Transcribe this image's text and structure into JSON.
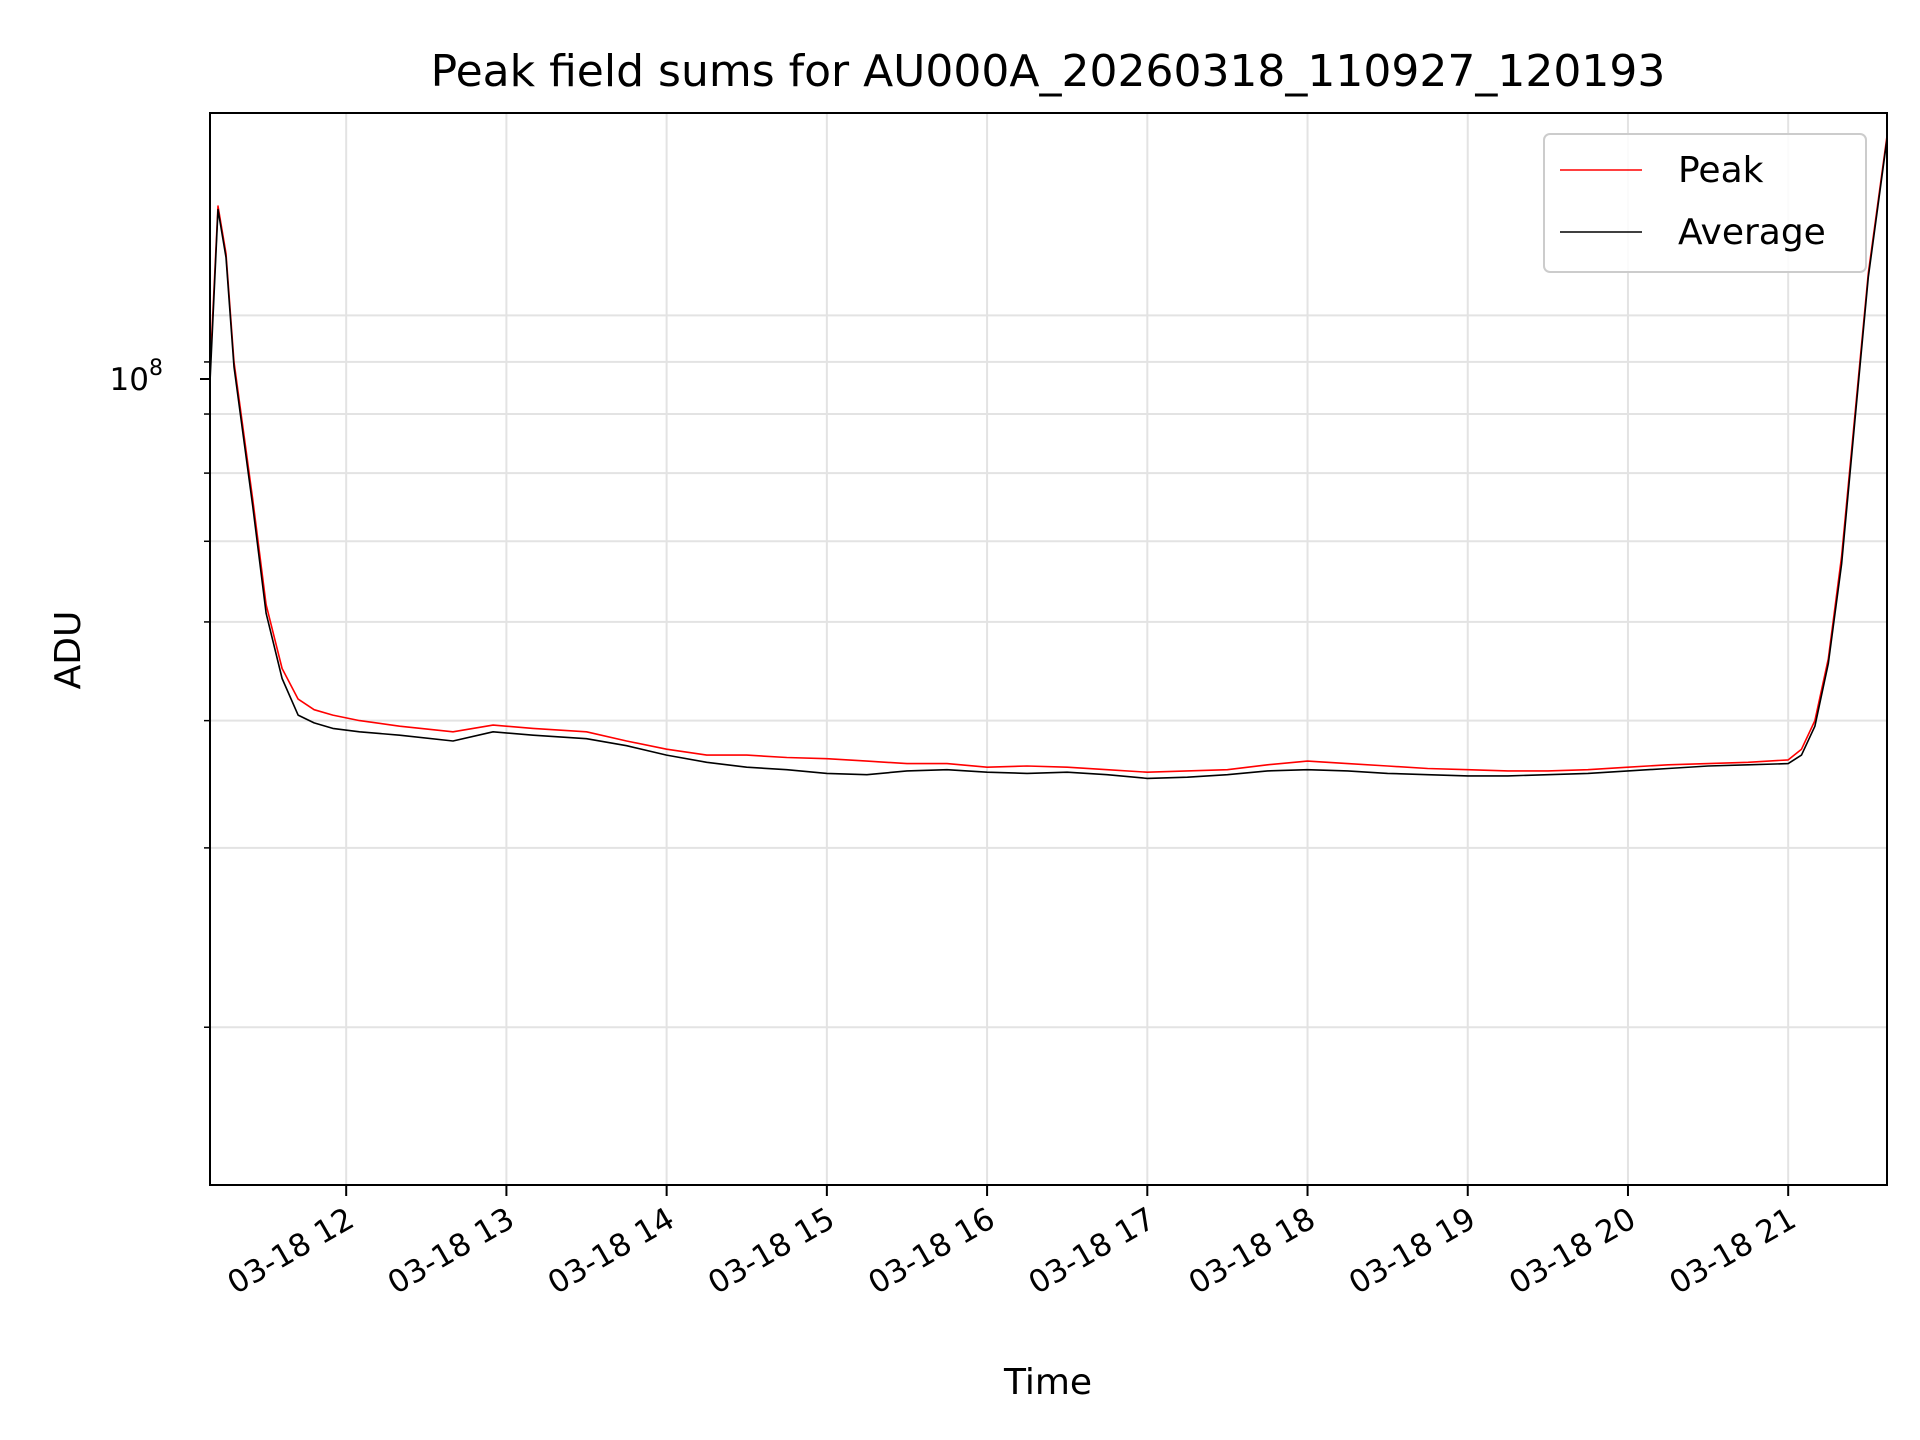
{
  "chart_data": {
    "type": "line",
    "title": "Peak field sums for AU000A_20260318_110927_120193",
    "xlabel": "Time",
    "ylabel": "ADU",
    "yscale": "log",
    "grid": true,
    "legend_placement": "top-right",
    "x_tick_labels": [
      "03-18 12",
      "03-18 13",
      "03-18 14",
      "03-18 15",
      "03-18 16",
      "03-18 17",
      "03-18 18",
      "03-18 19",
      "03-18 20",
      "03-18 21"
    ],
    "y_tick_label": {
      "base": "10",
      "exp": "8"
    },
    "xlim": [
      "2026-03-18 11:09",
      "2026-03-18 21:37"
    ],
    "ylim": [
      14000000,
      158000000
    ],
    "series": [
      {
        "name": "Peak",
        "color": "#ff0000",
        "x": [
          "11:09",
          "11:12",
          "11:15",
          "11:18",
          "11:25",
          "11:30",
          "11:36",
          "11:42",
          "11:48",
          "11:55",
          "12:05",
          "12:20",
          "12:40",
          "12:55",
          "13:10",
          "13:30",
          "13:45",
          "14:00",
          "14:15",
          "14:30",
          "14:45",
          "15:00",
          "15:15",
          "15:30",
          "15:45",
          "16:00",
          "16:15",
          "16:30",
          "16:45",
          "17:00",
          "17:15",
          "17:30",
          "17:45",
          "18:00",
          "18:15",
          "18:30",
          "18:45",
          "19:00",
          "19:15",
          "19:30",
          "19:45",
          "20:00",
          "20:15",
          "20:30",
          "20:45",
          "21:00",
          "21:05",
          "21:10",
          "21:15",
          "21:20",
          "21:25",
          "21:30",
          "21:37"
        ],
        "values": [
          88000000,
          128000000,
          115000000,
          90000000,
          66000000,
          52000000,
          45000000,
          42000000,
          41000000,
          40500000,
          40000000,
          39500000,
          39000000,
          39600000,
          39300000,
          39000000,
          38200000,
          37500000,
          37000000,
          37000000,
          36800000,
          36700000,
          36500000,
          36300000,
          36300000,
          36000000,
          36100000,
          36000000,
          35800000,
          35600000,
          35700000,
          35800000,
          36200000,
          36500000,
          36300000,
          36100000,
          35900000,
          35800000,
          35700000,
          35700000,
          35800000,
          36000000,
          36200000,
          36300000,
          36400000,
          36600000,
          37500000,
          40000000,
          46000000,
          58000000,
          80000000,
          110000000,
          150000000
        ]
      },
      {
        "name": "Average",
        "color": "#000000",
        "x": [
          "11:09",
          "11:12",
          "11:15",
          "11:18",
          "11:25",
          "11:30",
          "11:36",
          "11:42",
          "11:48",
          "11:55",
          "12:05",
          "12:20",
          "12:40",
          "12:55",
          "13:10",
          "13:30",
          "13:45",
          "14:00",
          "14:15",
          "14:30",
          "14:45",
          "15:00",
          "15:15",
          "15:30",
          "15:45",
          "16:00",
          "16:15",
          "16:30",
          "16:45",
          "17:00",
          "17:15",
          "17:30",
          "17:45",
          "18:00",
          "18:15",
          "18:30",
          "18:45",
          "19:00",
          "19:15",
          "19:30",
          "19:45",
          "20:00",
          "20:15",
          "20:30",
          "20:45",
          "21:00",
          "21:05",
          "21:10",
          "21:15",
          "21:20",
          "21:25",
          "21:30",
          "21:37"
        ],
        "values": [
          86000000,
          127000000,
          114000000,
          89000000,
          65000000,
          51000000,
          44000000,
          40500000,
          39800000,
          39300000,
          39000000,
          38700000,
          38200000,
          39000000,
          38700000,
          38400000,
          37800000,
          37000000,
          36400000,
          36000000,
          35800000,
          35500000,
          35400000,
          35700000,
          35800000,
          35600000,
          35500000,
          35600000,
          35400000,
          35100000,
          35200000,
          35400000,
          35700000,
          35800000,
          35700000,
          35500000,
          35400000,
          35300000,
          35300000,
          35400000,
          35500000,
          35700000,
          35900000,
          36100000,
          36200000,
          36300000,
          37000000,
          39500000,
          45500000,
          57000000,
          79000000,
          109000000,
          149000000
        ]
      }
    ]
  }
}
